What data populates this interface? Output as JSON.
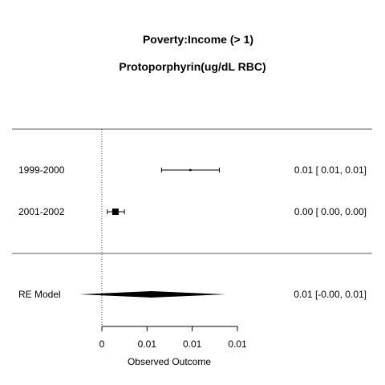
{
  "chart_data": {
    "type": "forest",
    "title": "Poverty:Income (> 1)",
    "subtitle": "Protoporphyrin(ug/dL RBC)",
    "xlabel": "Observed Outcome",
    "xlim": [
      -0.0005,
      0.0155
    ],
    "x_ticks": [
      0,
      0.005,
      0.01,
      0.015
    ],
    "x_tick_labels": [
      "0",
      "0.01",
      "0.01",
      "0.01"
    ],
    "reference_line": 0,
    "studies": [
      {
        "label": "1999-2000",
        "estimate": 0.0098,
        "ci_lower": 0.0066,
        "ci_upper": 0.013,
        "weight": 0.08,
        "text": "0.01 [ 0.01, 0.01]"
      },
      {
        "label": "2001-2002",
        "estimate": 0.0015,
        "ci_lower": 0.0006,
        "ci_upper": 0.0025,
        "weight": 1.0,
        "text": "0.00 [ 0.00, 0.00]"
      }
    ],
    "summary": {
      "label": "RE Model",
      "estimate": 0.0055,
      "ci_lower": -0.0025,
      "ci_upper": 0.0137,
      "text": "0.01 [-0.00, 0.01]"
    }
  }
}
